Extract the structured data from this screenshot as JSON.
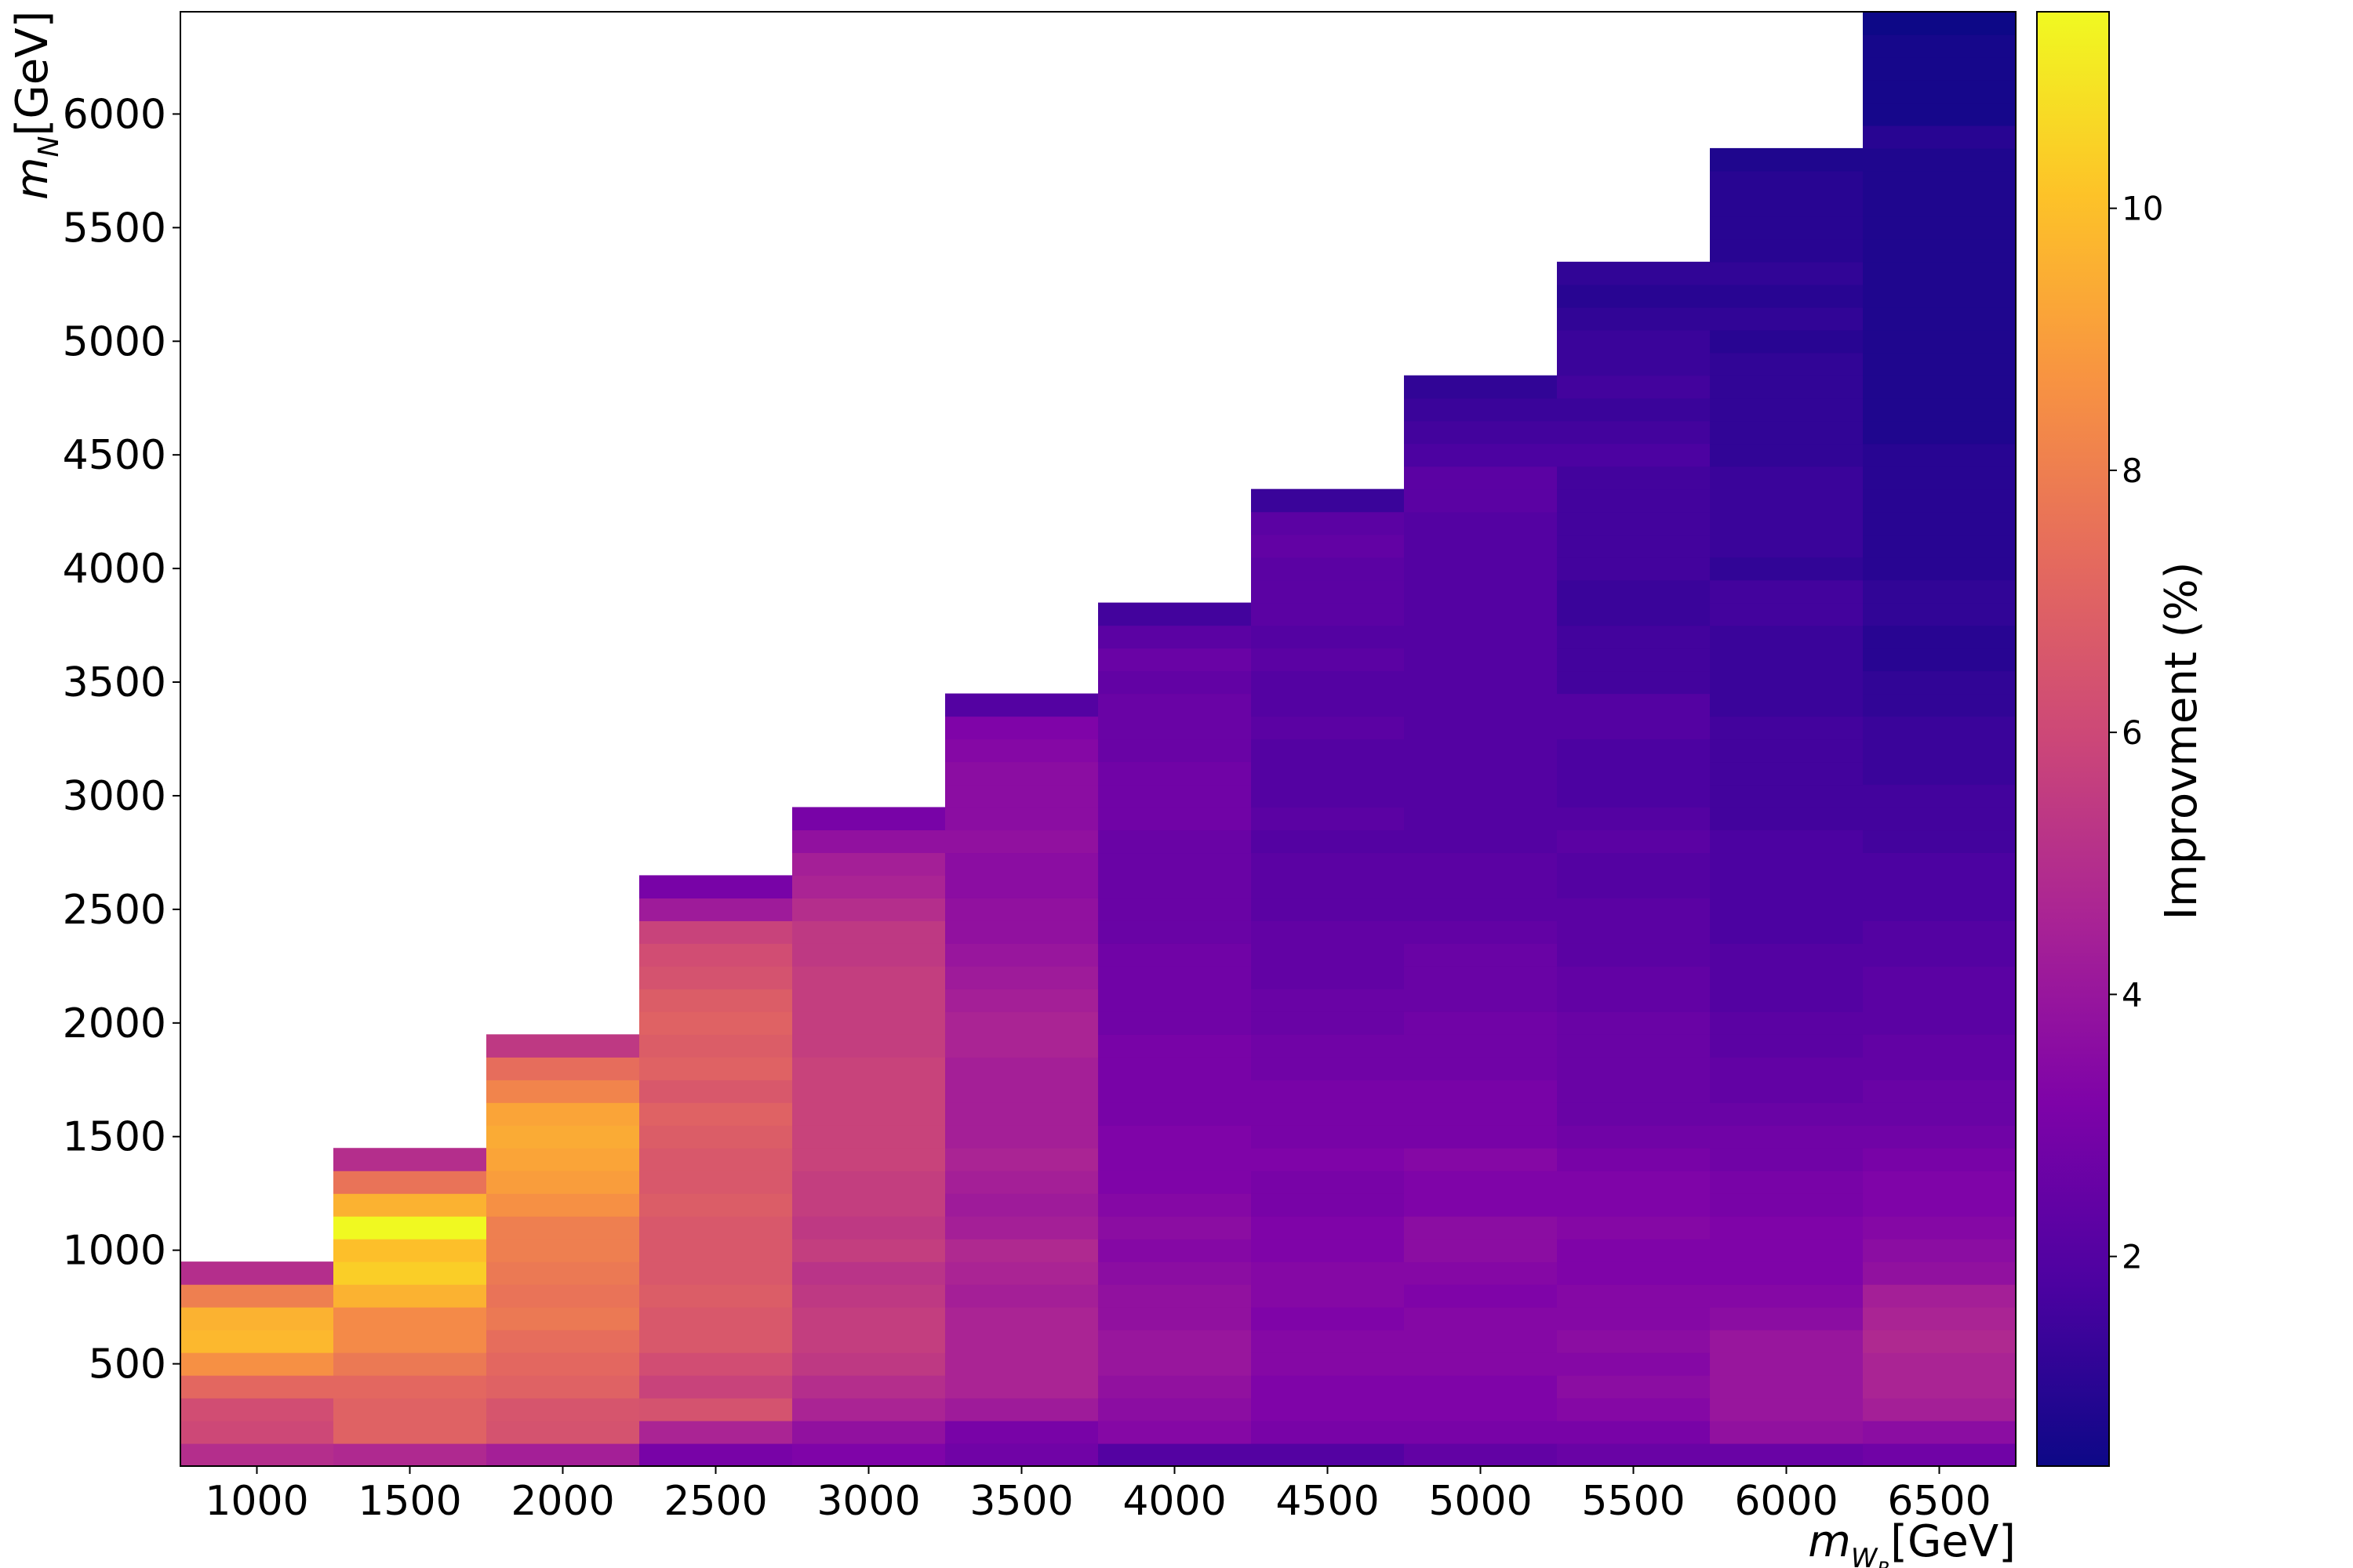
{
  "chart_data": {
    "type": "heatmap",
    "xlabel": "m_{W_R}[GeV]",
    "ylabel": "m_N[GeV]",
    "xlim": [
      750,
      6750
    ],
    "ylim": [
      50,
      6450
    ],
    "bin_width_x": 500,
    "bin_height_y": 100,
    "x_ticks": [
      1000,
      1500,
      2000,
      2500,
      3000,
      3500,
      4000,
      4500,
      5000,
      5500,
      6000,
      6500
    ],
    "y_ticks": [
      500,
      1000,
      1500,
      2000,
      2500,
      3000,
      3500,
      4000,
      4500,
      5000,
      5500,
      6000
    ],
    "colorbar": {
      "label": "Improvment (%)",
      "colormap": "plasma",
      "range": [
        0.4,
        11.5
      ],
      "ticks": [
        2,
        4,
        6,
        8,
        10
      ]
    },
    "columns": [
      {
        "x": 1000,
        "y_start": 100,
        "values": [
          5.0,
          6.0,
          6.2,
          7.2,
          8.6,
          9.8,
          9.6,
          8.0,
          5.0
        ]
      },
      {
        "x": 1500,
        "y_start": 100,
        "values": [
          4.8,
          7.0,
          7.0,
          7.2,
          7.8,
          8.4,
          8.4,
          9.6,
          10.4,
          10.0,
          11.5,
          9.6,
          7.6,
          5.0
        ]
      },
      {
        "x": 2000,
        "y_start": 100,
        "values": [
          4.4,
          6.4,
          6.5,
          7.0,
          7.2,
          7.4,
          7.8,
          7.6,
          7.8,
          8.0,
          8.0,
          8.6,
          9.0,
          9.2,
          9.4,
          9.2,
          8.2,
          7.4,
          5.4
        ]
      },
      {
        "x": 2500,
        "y_start": 100,
        "values": [
          3.0,
          4.6,
          6.4,
          5.8,
          6.2,
          6.6,
          6.6,
          6.8,
          6.6,
          6.6,
          6.6,
          6.8,
          6.6,
          6.6,
          6.8,
          7.0,
          6.6,
          7.0,
          6.8,
          7.0,
          6.8,
          6.4,
          6.2,
          5.8,
          4.2,
          3.0
        ]
      },
      {
        "x": 3000,
        "y_start": 100,
        "values": [
          3.2,
          3.8,
          4.6,
          5.0,
          5.4,
          5.6,
          5.6,
          5.4,
          5.2,
          5.6,
          5.4,
          5.6,
          5.6,
          5.8,
          5.8,
          5.8,
          5.8,
          5.8,
          5.6,
          5.6,
          5.6,
          5.6,
          5.4,
          5.4,
          5.0,
          4.6,
          4.4,
          3.8,
          3.0
        ]
      },
      {
        "x": 3500,
        "y_start": 100,
        "values": [
          2.8,
          3.0,
          4.2,
          4.6,
          4.6,
          4.6,
          4.6,
          4.4,
          4.6,
          4.8,
          4.4,
          4.2,
          4.4,
          4.6,
          4.4,
          4.4,
          4.4,
          4.4,
          4.6,
          4.6,
          4.4,
          4.2,
          4.0,
          3.8,
          3.8,
          3.6,
          3.6,
          3.8,
          3.6,
          3.6,
          3.6,
          3.4,
          3.2,
          2.0
        ]
      },
      {
        "x": 4000,
        "y_start": 100,
        "values": [
          2.0,
          3.4,
          3.6,
          3.8,
          4.0,
          4.0,
          3.8,
          3.8,
          3.6,
          3.4,
          3.6,
          3.4,
          3.2,
          3.2,
          3.2,
          3.0,
          3.0,
          3.0,
          3.0,
          2.8,
          2.8,
          2.8,
          2.8,
          2.6,
          2.6,
          2.6,
          2.6,
          2.6,
          2.8,
          2.8,
          2.8,
          2.6,
          2.6,
          2.6,
          2.4,
          2.6,
          2.2,
          1.6
        ]
      },
      {
        "x": 4500,
        "y_start": 100,
        "values": [
          2.0,
          3.0,
          3.2,
          3.2,
          3.4,
          3.4,
          3.2,
          3.4,
          3.4,
          3.2,
          3.2,
          3.0,
          3.0,
          3.2,
          3.0,
          3.0,
          3.0,
          2.8,
          2.8,
          2.6,
          2.6,
          2.4,
          2.4,
          2.4,
          2.2,
          2.2,
          2.2,
          2.0,
          2.2,
          2.0,
          2.0,
          2.0,
          2.2,
          2.0,
          2.0,
          2.2,
          2.0,
          2.2,
          2.2,
          2.2,
          2.4,
          2.2,
          1.4
        ]
      },
      {
        "x": 5000,
        "y_start": 100,
        "values": [
          2.4,
          3.0,
          3.2,
          3.2,
          3.4,
          3.4,
          3.4,
          3.2,
          3.4,
          3.6,
          3.6,
          3.2,
          3.2,
          3.4,
          3.0,
          3.0,
          3.0,
          2.8,
          2.8,
          2.8,
          2.6,
          2.6,
          2.6,
          2.4,
          2.2,
          2.2,
          2.2,
          2.0,
          2.0,
          2.0,
          2.0,
          2.0,
          2.0,
          2.0,
          2.0,
          2.0,
          2.0,
          2.0,
          2.0,
          2.0,
          2.0,
          2.0,
          2.2,
          2.2,
          1.8,
          1.6,
          1.4,
          1.2
        ]
      },
      {
        "x": 5500,
        "y_start": 100,
        "values": [
          2.6,
          3.0,
          3.4,
          3.6,
          3.4,
          3.6,
          3.4,
          3.4,
          3.2,
          3.2,
          3.4,
          3.2,
          3.2,
          3.0,
          2.8,
          2.6,
          2.6,
          2.6,
          2.6,
          2.6,
          2.4,
          2.4,
          2.2,
          2.2,
          2.2,
          2.0,
          2.0,
          2.2,
          2.0,
          1.8,
          1.8,
          1.8,
          2.0,
          2.0,
          1.6,
          1.6,
          1.6,
          1.4,
          1.4,
          1.6,
          1.6,
          1.6,
          1.6,
          1.6,
          1.8,
          1.6,
          1.4,
          1.6,
          1.4,
          1.4,
          1.2,
          1.0,
          1.2
        ]
      },
      {
        "x": 6000,
        "y_start": 100,
        "values": [
          2.6,
          3.8,
          4.0,
          4.0,
          4.0,
          4.0,
          3.6,
          3.4,
          3.2,
          3.2,
          3.2,
          3.0,
          3.0,
          2.8,
          2.8,
          2.6,
          2.4,
          2.4,
          2.2,
          2.2,
          2.0,
          2.0,
          2.0,
          1.8,
          1.8,
          1.8,
          1.8,
          1.8,
          1.6,
          1.6,
          1.6,
          1.6,
          1.6,
          1.4,
          1.4,
          1.4,
          1.4,
          1.6,
          1.6,
          1.2,
          1.4,
          1.4,
          1.4,
          1.4,
          1.2,
          1.2,
          1.2,
          1.2,
          1.2,
          1.0,
          1.2,
          1.0,
          1.2,
          1.0,
          1.0,
          1.0,
          1.0,
          0.8
        ]
      },
      {
        "x": 6500,
        "y_start": 100,
        "values": [
          2.8,
          3.6,
          4.4,
          4.6,
          4.6,
          4.8,
          4.6,
          4.4,
          3.8,
          3.6,
          3.4,
          3.2,
          3.2,
          3.0,
          2.8,
          2.6,
          2.6,
          2.4,
          2.4,
          2.2,
          2.2,
          2.2,
          2.0,
          2.0,
          1.8,
          1.8,
          1.8,
          1.6,
          1.6,
          1.6,
          1.4,
          1.4,
          1.4,
          1.2,
          1.2,
          1.0,
          1.0,
          1.2,
          1.2,
          1.0,
          1.0,
          1.0,
          1.0,
          1.0,
          1.0,
          0.8,
          0.8,
          0.8,
          0.8,
          0.8,
          0.8,
          0.8,
          0.8,
          0.8,
          0.8,
          0.8,
          0.8,
          0.8,
          1.0,
          0.6,
          0.6,
          0.6,
          0.6,
          0.4
        ]
      }
    ]
  }
}
